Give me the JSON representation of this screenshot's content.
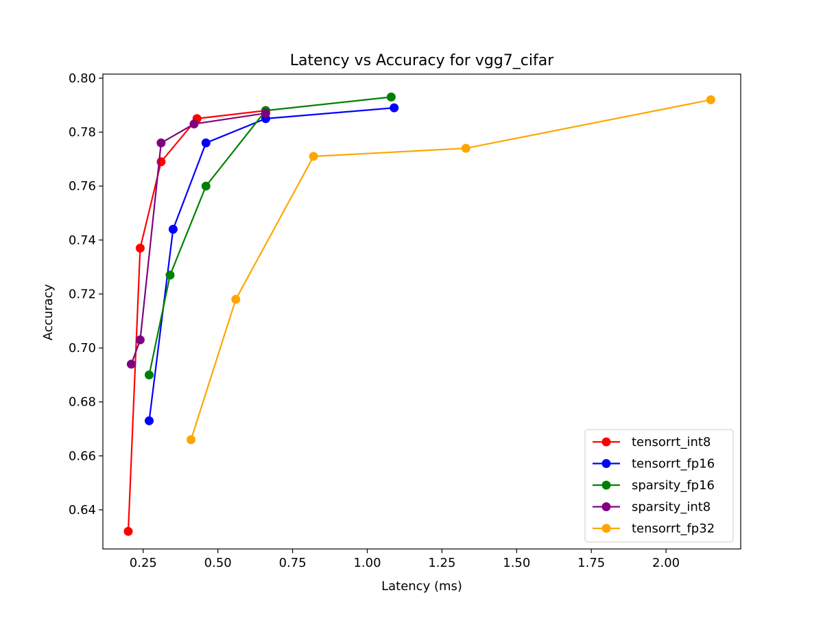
{
  "chart_data": {
    "type": "line",
    "title": "Latency vs Accuracy for vgg7_cifar",
    "xlabel": "Latency (ms)",
    "ylabel": "Accuracy",
    "xlim": [
      0.115,
      2.25
    ],
    "ylim": [
      0.6255,
      0.8015
    ],
    "xticks": [
      0.25,
      0.5,
      0.75,
      1.0,
      1.25,
      1.5,
      1.75,
      2.0
    ],
    "xtick_labels": [
      "0.25",
      "0.50",
      "0.75",
      "1.00",
      "1.25",
      "1.50",
      "1.75",
      "2.00"
    ],
    "yticks": [
      0.64,
      0.66,
      0.68,
      0.7,
      0.72,
      0.74,
      0.76,
      0.78,
      0.8
    ],
    "ytick_labels": [
      "0.64",
      "0.66",
      "0.68",
      "0.70",
      "0.72",
      "0.74",
      "0.76",
      "0.78",
      "0.80"
    ],
    "grid": false,
    "legend_position": "bottom-right",
    "series": [
      {
        "name": "tensorrt_int8",
        "color": "#ff0000",
        "x": [
          0.2,
          0.24,
          0.31,
          0.43,
          0.66
        ],
        "y": [
          0.632,
          0.737,
          0.769,
          0.785,
          0.788
        ]
      },
      {
        "name": "tensorrt_fp16",
        "color": "#0000ff",
        "x": [
          0.27,
          0.35,
          0.46,
          0.66,
          1.09
        ],
        "y": [
          0.673,
          0.744,
          0.776,
          0.785,
          0.789
        ]
      },
      {
        "name": "sparsity_fp16",
        "color": "#008000",
        "x": [
          0.27,
          0.34,
          0.46,
          0.66,
          1.08
        ],
        "y": [
          0.69,
          0.727,
          0.76,
          0.788,
          0.793
        ]
      },
      {
        "name": "sparsity_int8",
        "color": "#800080",
        "x": [
          0.21,
          0.24,
          0.31,
          0.42,
          0.66
        ],
        "y": [
          0.694,
          0.703,
          0.776,
          0.783,
          0.787
        ]
      },
      {
        "name": "tensorrt_fp32",
        "color": "#ffa500",
        "x": [
          0.41,
          0.56,
          0.82,
          1.33,
          2.15
        ],
        "y": [
          0.666,
          0.718,
          0.771,
          0.774,
          0.792
        ]
      }
    ]
  }
}
